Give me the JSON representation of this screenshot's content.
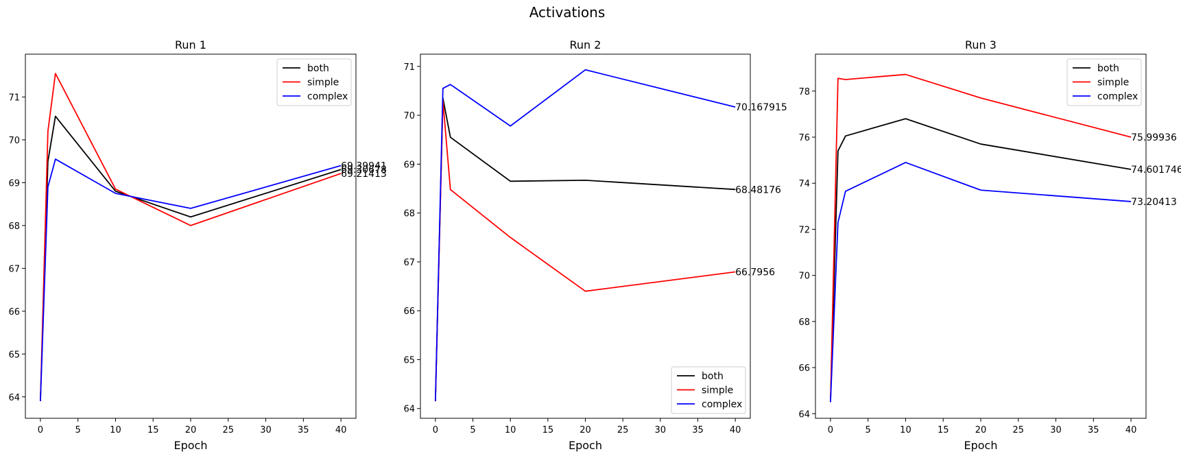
{
  "suptitle": "Activations",
  "chart_data": [
    {
      "type": "line",
      "title": "Run 1",
      "xlabel": "Epoch",
      "ylabel": "",
      "xlim": [
        -2,
        42
      ],
      "ylim": [
        63.5,
        72
      ],
      "xticks": [
        0,
        5,
        10,
        15,
        20,
        25,
        30,
        35,
        40
      ],
      "yticks": [
        64,
        65,
        66,
        67,
        68,
        69,
        70,
        71
      ],
      "legend": "top-right",
      "x": [
        0,
        1,
        2,
        10,
        20,
        40
      ],
      "series": [
        {
          "name": "both",
          "color": "#000000",
          "values": [
            63.9,
            69.5,
            70.55,
            68.8,
            68.2,
            69.30678
          ],
          "end_label": "69.30678"
        },
        {
          "name": "simple",
          "color": "#ff0000",
          "values": [
            63.9,
            70.2,
            71.55,
            68.85,
            68.0,
            69.21413
          ],
          "end_label": "69.21413"
        },
        {
          "name": "complex",
          "color": "#0000ff",
          "values": [
            63.9,
            68.9,
            69.55,
            68.75,
            68.4,
            69.39941
          ],
          "end_label": "69.39941"
        }
      ]
    },
    {
      "type": "line",
      "title": "Run 2",
      "xlabel": "Epoch",
      "ylabel": "",
      "xlim": [
        -2,
        42
      ],
      "ylim": [
        63.8,
        71.25
      ],
      "xticks": [
        0,
        5,
        10,
        15,
        20,
        25,
        30,
        35,
        40
      ],
      "yticks": [
        64,
        65,
        66,
        67,
        68,
        69,
        70,
        71
      ],
      "legend": "bottom-right",
      "x": [
        0,
        1,
        2,
        10,
        20,
        40
      ],
      "series": [
        {
          "name": "both",
          "color": "#000000",
          "values": [
            64.15,
            70.35,
            69.55,
            68.65,
            68.67,
            68.48176
          ],
          "end_label": "68.48176"
        },
        {
          "name": "simple",
          "color": "#ff0000",
          "values": [
            64.15,
            70.3,
            68.48,
            67.5,
            66.4,
            66.7956
          ],
          "end_label": "66.7956"
        },
        {
          "name": "complex",
          "color": "#0000ff",
          "values": [
            64.15,
            70.55,
            70.63,
            69.78,
            70.93,
            70.167915
          ],
          "end_label": "70.167915"
        }
      ]
    },
    {
      "type": "line",
      "title": "Run 3",
      "xlabel": "Epoch",
      "ylabel": "",
      "xlim": [
        -2,
        42
      ],
      "ylim": [
        63.8,
        79.6
      ],
      "xticks": [
        0,
        5,
        10,
        15,
        20,
        25,
        30,
        35,
        40
      ],
      "yticks": [
        64,
        66,
        68,
        70,
        72,
        74,
        76,
        78
      ],
      "legend": "top-right",
      "x": [
        0,
        1,
        2,
        10,
        20,
        40
      ],
      "series": [
        {
          "name": "both",
          "color": "#000000",
          "values": [
            64.5,
            75.4,
            76.05,
            76.8,
            75.7,
            74.601746
          ],
          "end_label": "74.601746"
        },
        {
          "name": "simple",
          "color": "#ff0000",
          "values": [
            64.5,
            78.55,
            78.5,
            78.72,
            77.7,
            75.99936
          ],
          "end_label": "75.99936"
        },
        {
          "name": "complex",
          "color": "#0000ff",
          "values": [
            64.5,
            72.3,
            73.65,
            74.9,
            73.7,
            73.20413
          ],
          "end_label": "73.20413"
        }
      ]
    }
  ]
}
